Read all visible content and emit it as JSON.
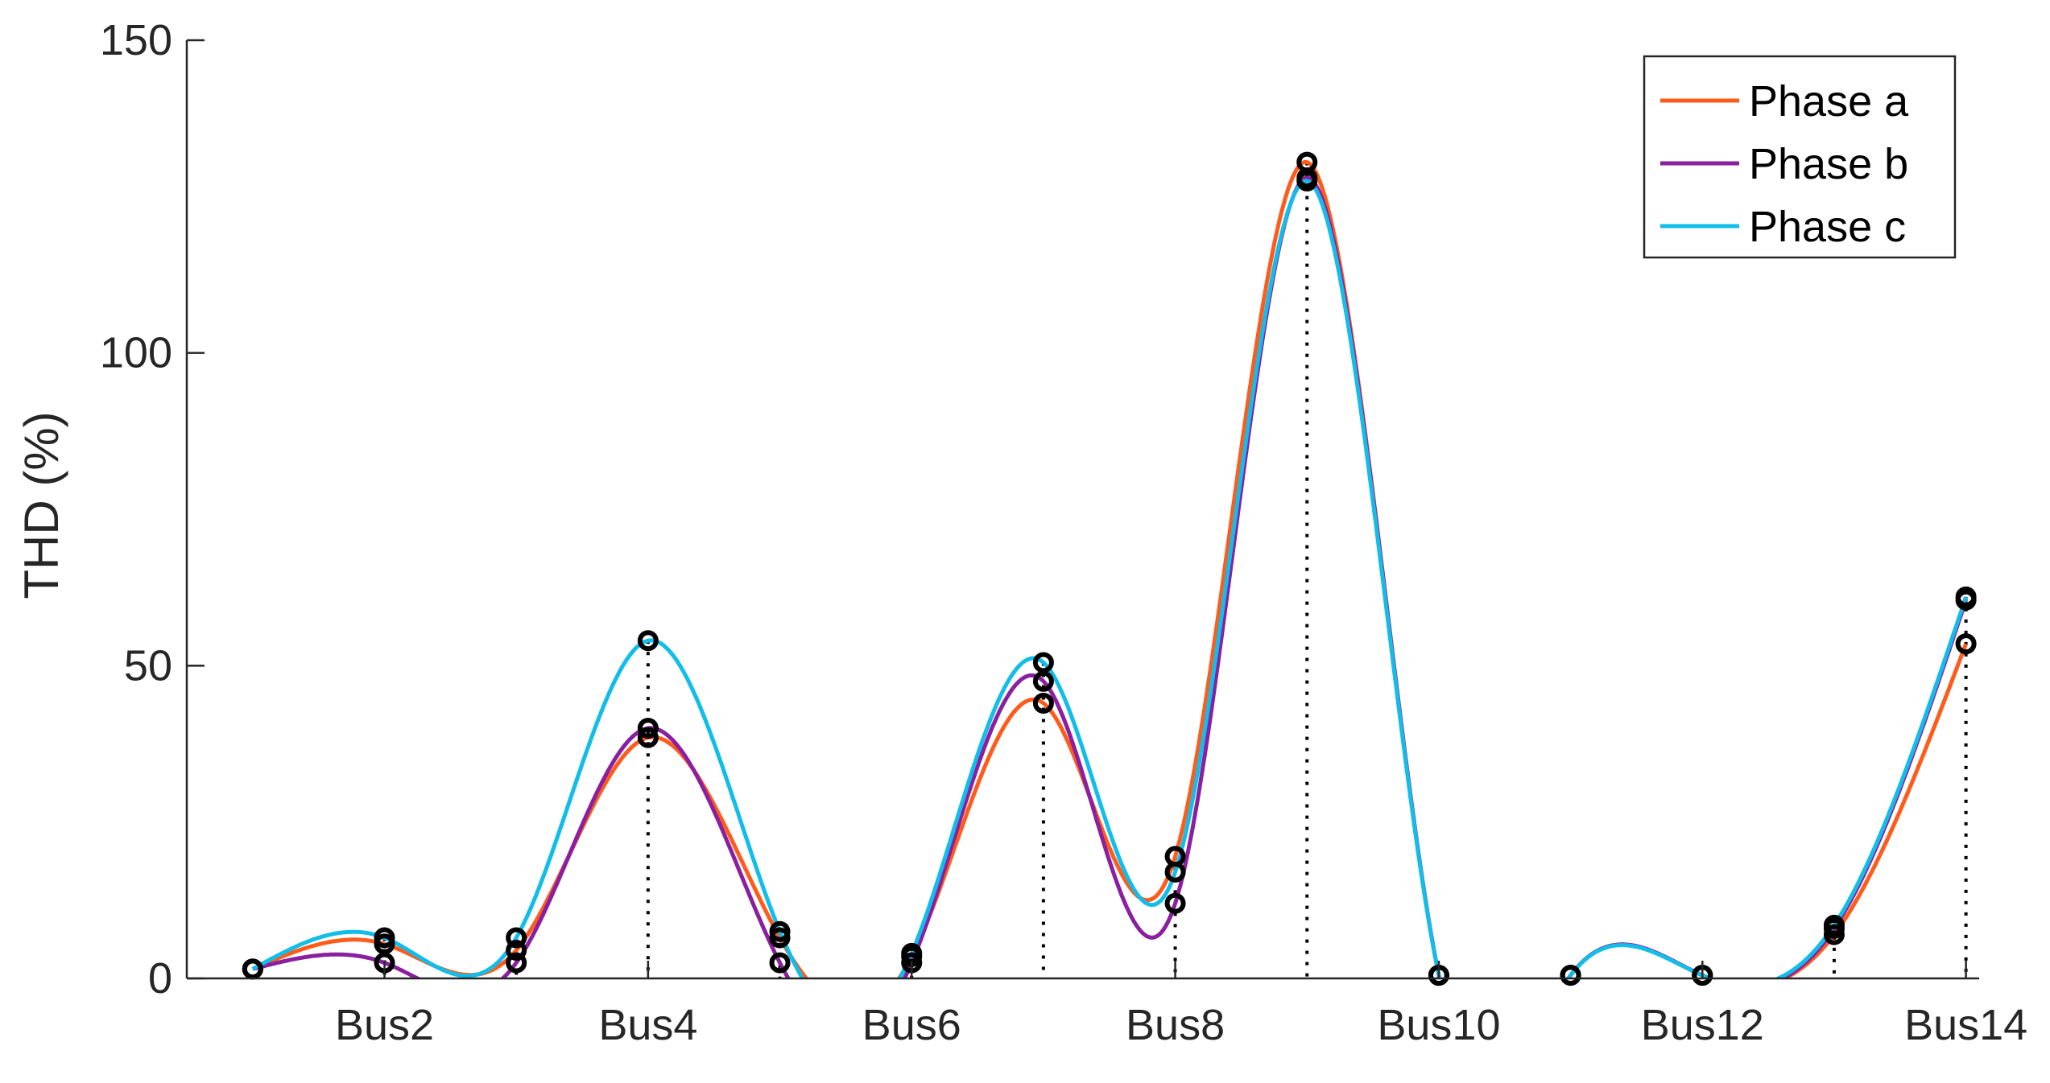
{
  "chart_data": {
    "type": "line",
    "title": "",
    "xlabel": "",
    "ylabel": "THD (%)",
    "ylim": [
      0,
      150
    ],
    "xlim": [
      0.5,
      14.1
    ],
    "yticks": [
      0,
      50,
      100,
      150
    ],
    "xtick_positions": [
      2,
      4,
      6,
      8,
      10,
      12,
      14
    ],
    "xtick_labels": [
      "Bus2",
      "Bus4",
      "Bus6",
      "Bus8",
      "Bus10",
      "Bus12",
      "Bus14"
    ],
    "grid": false,
    "legend_position": "top-right",
    "series": [
      {
        "name": "Phase a",
        "color": "#ff5b1a",
        "x": [
          1,
          2,
          3,
          4,
          5,
          6,
          7,
          8,
          9,
          10,
          11,
          12,
          13,
          14
        ],
        "values": [
          1.5,
          5.5,
          4.5,
          38.5,
          6.5,
          3.5,
          44,
          19.5,
          130.5,
          0.5,
          0.5,
          0.5,
          7,
          53.5
        ]
      },
      {
        "name": "Phase b",
        "color": "#8a1fa0",
        "x": [
          1,
          2,
          3,
          4,
          5,
          6,
          7,
          8,
          9,
          10,
          11,
          12,
          13,
          14
        ],
        "values": [
          1.5,
          2.5,
          2.5,
          40,
          2.5,
          2.5,
          47.5,
          12,
          128,
          0.5,
          0.5,
          0.5,
          8,
          60.5
        ]
      },
      {
        "name": "Phase c",
        "color": "#11bde9",
        "x": [
          1,
          2,
          3,
          4,
          5,
          6,
          7,
          8,
          9,
          10,
          11,
          12,
          13,
          14
        ],
        "values": [
          1.5,
          6.5,
          6.5,
          54,
          7.5,
          4,
          50.5,
          17,
          127.5,
          0.5,
          0.5,
          0.5,
          8.5,
          61
        ]
      }
    ],
    "marker": "black open circle at each data point with dotted drop line to the x-axis"
  }
}
